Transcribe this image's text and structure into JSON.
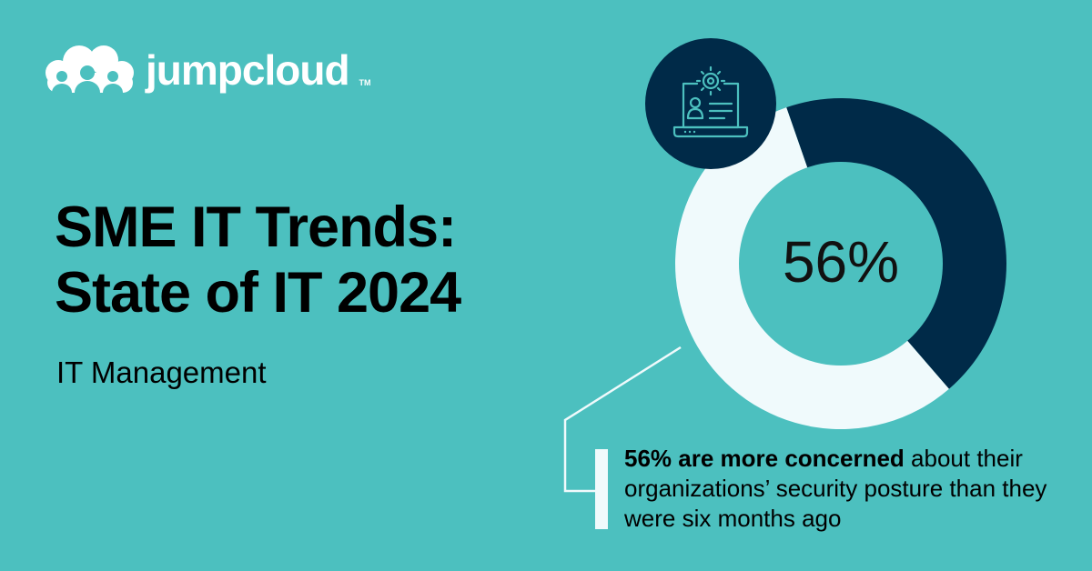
{
  "brand": {
    "name": "jumpcloud",
    "trademark": "TM",
    "icon": "cloud-people-logo-icon"
  },
  "title_line1": "SME IT Trends:",
  "title_line2": "State of IT 2024",
  "subtitle": "IT Management",
  "chart_data": {
    "type": "pie",
    "title": "",
    "center_label": "56%",
    "slices": [
      {
        "label": "",
        "value": 56,
        "color": "#f0fafc"
      },
      {
        "label": "",
        "value": 44,
        "color": "#002a48"
      }
    ]
  },
  "badge_icon": "laptop-user-gear-icon",
  "callout": {
    "bold": "56% are more concerned",
    "rest": " about their organizations’ security posture than they were six months ago"
  },
  "colors": {
    "background": "#4cc0bf",
    "navy": "#002a48",
    "light": "#f0fafc"
  }
}
